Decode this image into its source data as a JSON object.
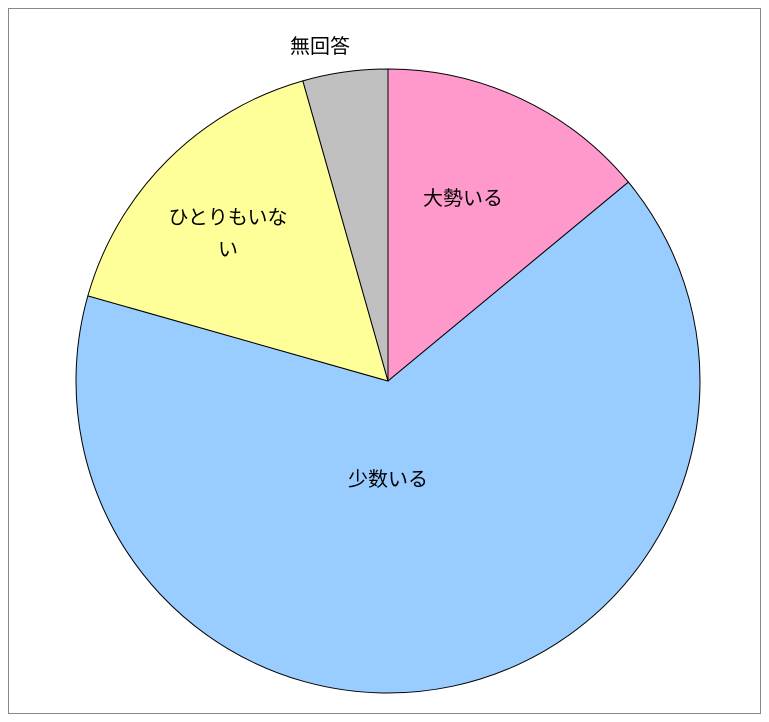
{
  "chart_data": {
    "type": "pie",
    "categories": [
      "大勢いる",
      "少数いる",
      "ひとりもいない",
      "無回答"
    ],
    "values": [
      14,
      65.4,
      16.2,
      4.4
    ],
    "colors": [
      "#ff99cc",
      "#99ccff",
      "#ffff99",
      "#c0c0c0"
    ]
  }
}
